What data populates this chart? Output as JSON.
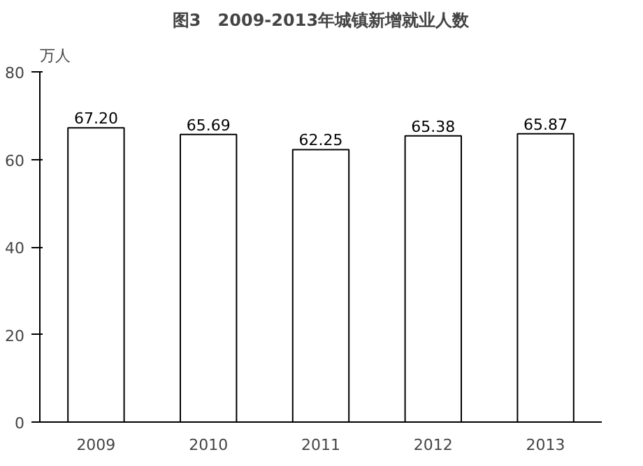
{
  "chart_data": {
    "type": "bar",
    "title": "图3　2009-2013年城镇新增就业人数",
    "ylabel": "万人",
    "categories": [
      "2009",
      "2010",
      "2011",
      "2012",
      "2013"
    ],
    "values": [
      67.2,
      65.69,
      62.25,
      65.38,
      65.87
    ],
    "value_labels": [
      "67.20",
      "65.69",
      "62.25",
      "65.38",
      "65.87"
    ],
    "color": "#ffffff",
    "ylim": [
      0,
      80
    ],
    "yticks": [
      0,
      20,
      40,
      60,
      80
    ],
    "grid": false
  }
}
